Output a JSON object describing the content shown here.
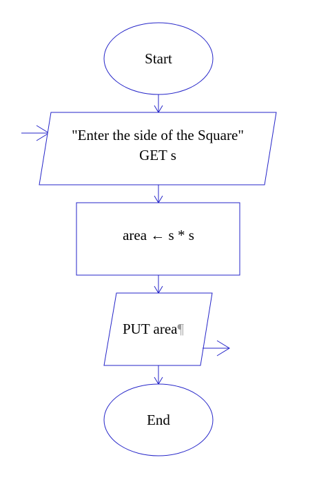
{
  "colors": {
    "stroke": "#2323c8",
    "text": "#000000",
    "background": "#ffffff"
  },
  "nodes": {
    "start": {
      "shape": "ellipse",
      "label": "Start"
    },
    "input": {
      "shape": "parallelogram",
      "line1": "\"Enter the side of the Square\"",
      "line2": "GET s"
    },
    "process": {
      "shape": "rectangle",
      "label": "area ← s * s"
    },
    "output": {
      "shape": "parallelogram",
      "label": "PUT area",
      "pilcrow": "¶"
    },
    "end": {
      "shape": "ellipse",
      "label": "End"
    }
  },
  "edges": [
    {
      "from": "start",
      "to": "input"
    },
    {
      "from": "input",
      "to": "process"
    },
    {
      "from": "process",
      "to": "output"
    },
    {
      "from": "output",
      "to": "end"
    }
  ],
  "io_markers": {
    "input_marker": "arrow-into-input",
    "output_marker": "arrow-out-of-output"
  }
}
